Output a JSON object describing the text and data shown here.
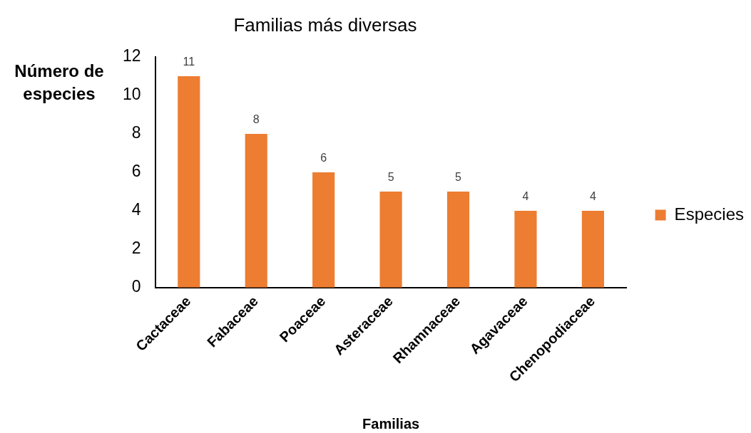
{
  "chart_data": {
    "type": "bar",
    "title": "Familias más diversas",
    "xlabel": "Familias",
    "ylabel": "Número de especies",
    "categories": [
      "Cactaceae",
      "Fabaceae",
      "Poaceae",
      "Asteraceae",
      "Rhamnaceae",
      "Agavaceae",
      "Chenopodiaceae"
    ],
    "series": [
      {
        "name": "Especies",
        "color": "#ed7d31",
        "values": [
          11,
          8,
          6,
          5,
          5,
          4,
          4
        ]
      }
    ],
    "ylim": [
      0,
      12
    ],
    "yticks": [
      0,
      2,
      4,
      6,
      8,
      10,
      12
    ],
    "data_labels": true,
    "grid": false,
    "legend": "right"
  }
}
